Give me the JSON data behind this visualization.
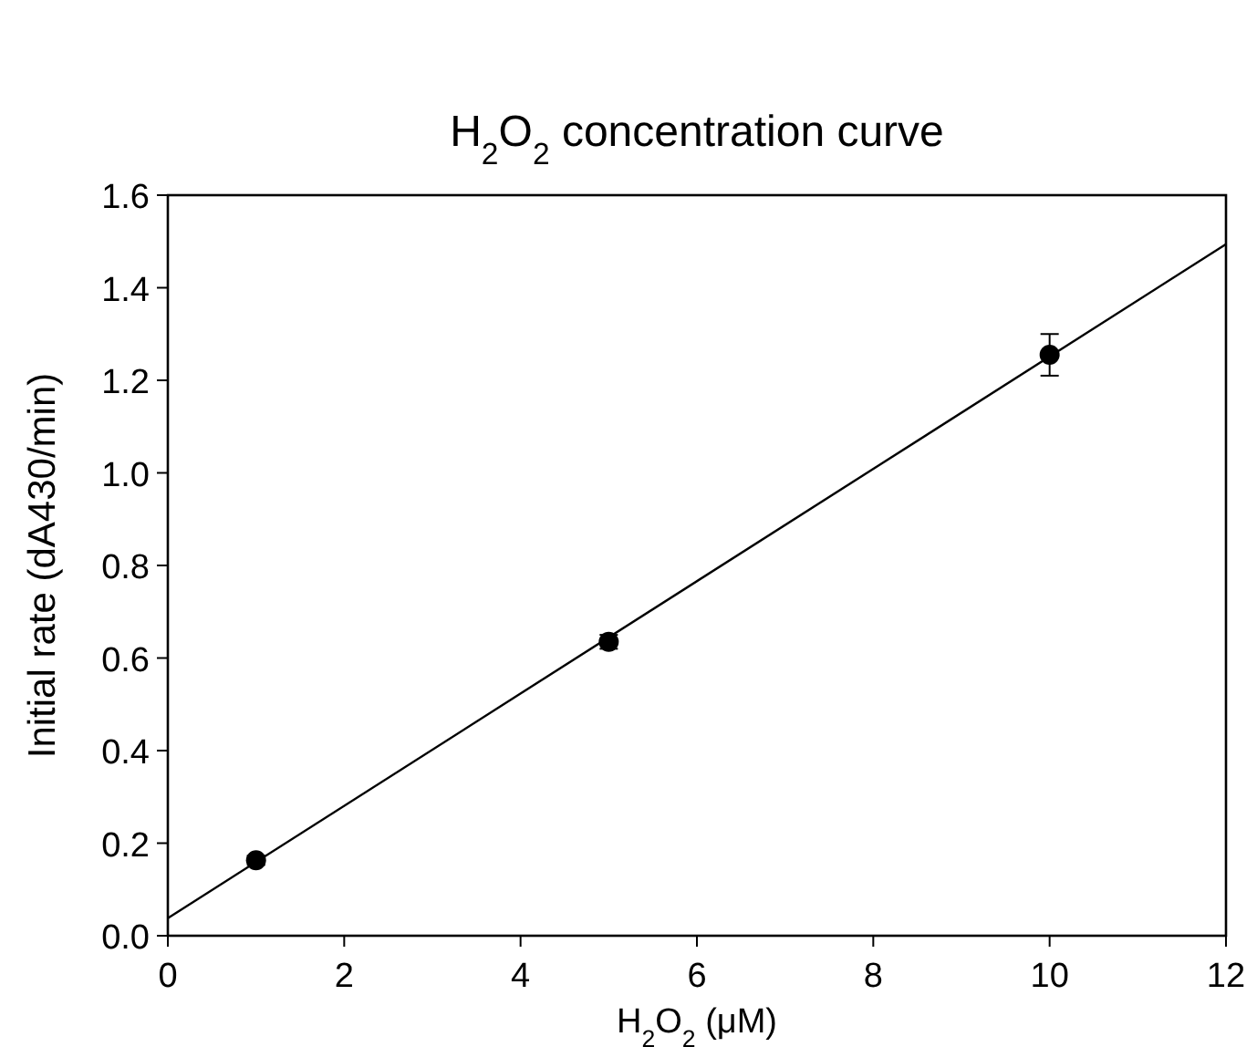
{
  "chart_data": {
    "type": "scatter",
    "title": "H$_{2}$O$_{2}$ concentration curve",
    "xlabel": "H$_{2}$O$_{2}$ (μM)",
    "ylabel": "Initial rate (dA430/min)",
    "xlim": [
      0,
      12
    ],
    "xticks": [
      0,
      2,
      4,
      6,
      8,
      10,
      12
    ],
    "ylim": [
      0,
      1.6
    ],
    "yticks": [
      {
        "value": 0,
        "label": "0.0"
      },
      {
        "value": 0.2,
        "label": "0.2"
      },
      {
        "value": 0.4,
        "label": "0.4"
      },
      {
        "value": 0.6,
        "label": "0.6"
      },
      {
        "value": 0.8,
        "label": "0.8"
      },
      {
        "value": 1,
        "label": "1.0"
      },
      {
        "value": 1.2,
        "label": "1.2"
      },
      {
        "value": 1.4,
        "label": "1.4"
      },
      {
        "value": 1.6,
        "label": "1.6"
      }
    ],
    "grid": false,
    "series": [
      {
        "marker": "circle",
        "color": "#000000",
        "x": [
          1,
          5,
          10
        ],
        "values": [
          0.163,
          0.635,
          1.255
        ],
        "errors": [
          0.01,
          0.015,
          0.045
        ]
      },
      {
        "type": "line",
        "color": "#000000",
        "x": [
          0,
          12
        ],
        "values": [
          0.038,
          1.494
        ]
      }
    ]
  }
}
